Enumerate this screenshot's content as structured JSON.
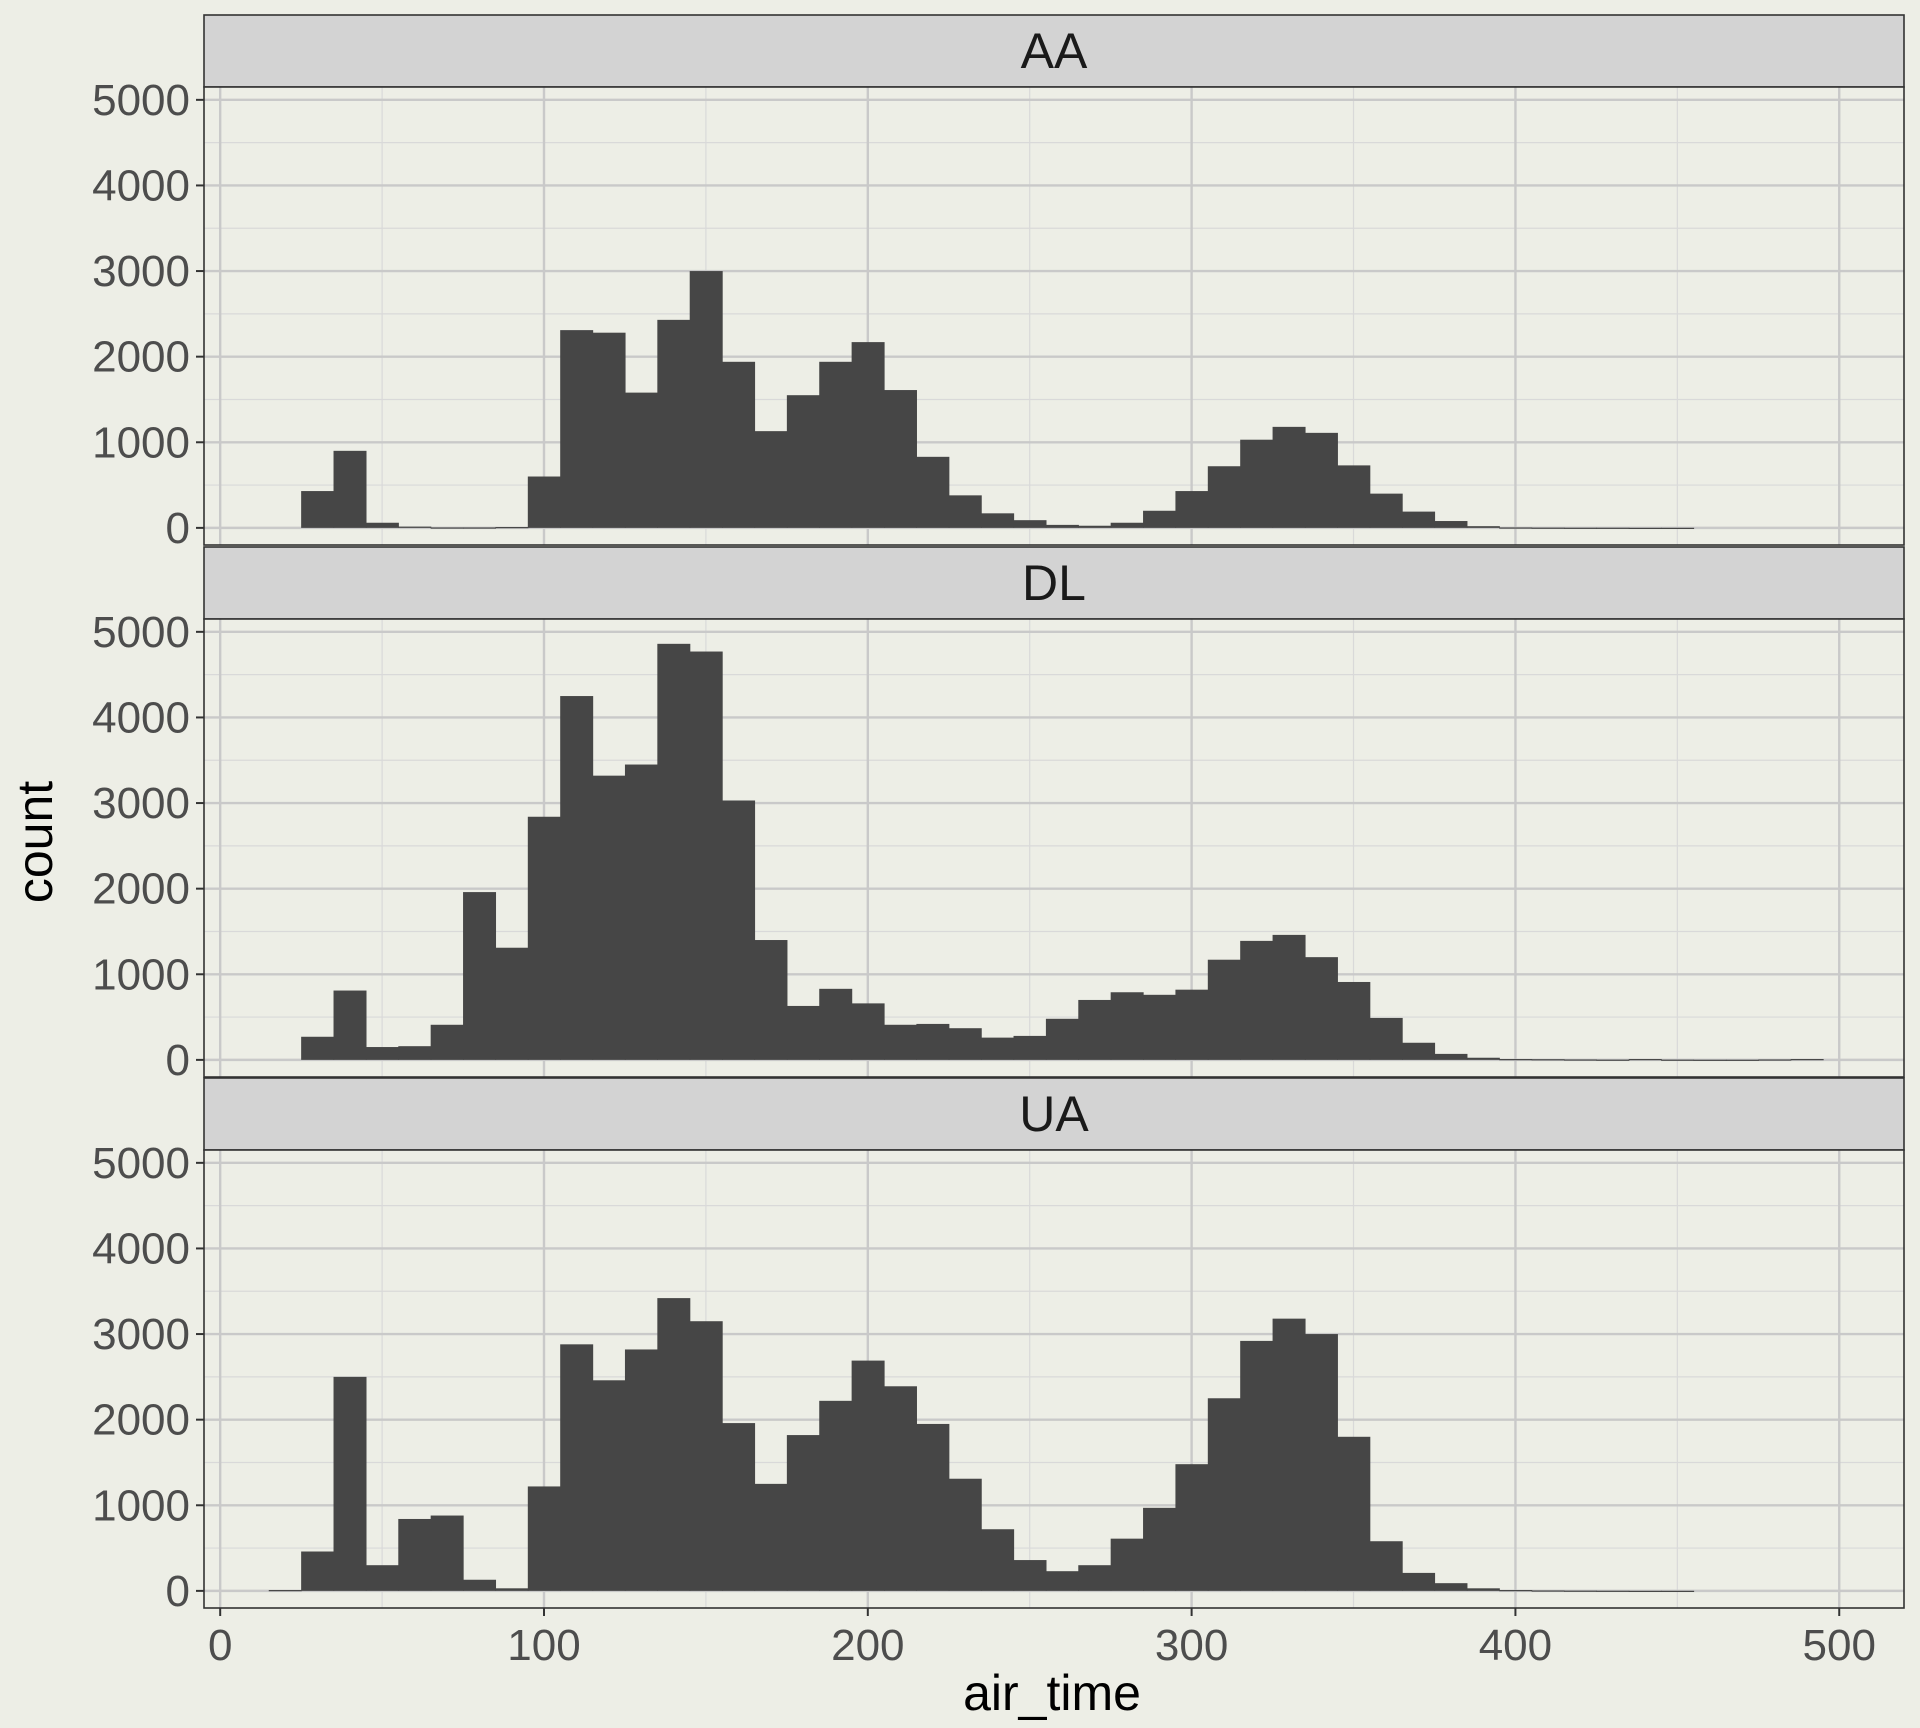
{
  "chart_data": {
    "type": "bar",
    "subtype": "faceted-histogram",
    "xlabel": "air_time",
    "ylabel": "count",
    "xlim": [
      -5,
      520
    ],
    "ylim": [
      -200,
      5150
    ],
    "x_ticks": [
      0,
      100,
      200,
      300,
      400,
      500
    ],
    "y_ticks": [
      0,
      1000,
      2000,
      3000,
      4000,
      5000
    ],
    "grid": true,
    "bin_width": 10,
    "bar_color": "#464646",
    "panel_background": "#edeee6",
    "strip_background": "#d3d3d3",
    "facets": [
      {
        "label": "AA",
        "bin_centers": [
          20,
          30,
          40,
          50,
          60,
          70,
          80,
          90,
          100,
          110,
          120,
          130,
          140,
          150,
          160,
          170,
          180,
          190,
          200,
          210,
          220,
          230,
          240,
          250,
          260,
          270,
          280,
          290,
          300,
          310,
          320,
          330,
          340,
          350,
          360,
          370,
          380,
          390,
          400,
          410,
          420,
          430,
          440,
          450,
          460,
          470,
          480,
          490
        ],
        "values": [
          0,
          430,
          900,
          60,
          15,
          5,
          5,
          10,
          600,
          2310,
          2280,
          1580,
          2430,
          3000,
          1940,
          1130,
          1550,
          1940,
          2170,
          1610,
          830,
          380,
          170,
          90,
          35,
          25,
          60,
          200,
          430,
          720,
          1030,
          1180,
          1110,
          730,
          400,
          190,
          80,
          20,
          5,
          3,
          2,
          2,
          1,
          1,
          0,
          0,
          0,
          0
        ]
      },
      {
        "label": "DL",
        "bin_centers": [
          20,
          30,
          40,
          50,
          60,
          70,
          80,
          90,
          100,
          110,
          120,
          130,
          140,
          150,
          160,
          170,
          180,
          190,
          200,
          210,
          220,
          230,
          240,
          250,
          260,
          270,
          280,
          290,
          300,
          310,
          320,
          330,
          340,
          350,
          360,
          370,
          380,
          390,
          400,
          410,
          420,
          430,
          440,
          450,
          460,
          470,
          480,
          490
        ],
        "values": [
          0,
          270,
          810,
          150,
          160,
          410,
          1960,
          1310,
          2840,
          4250,
          3320,
          3450,
          4860,
          4770,
          3030,
          1400,
          630,
          830,
          660,
          410,
          420,
          370,
          260,
          280,
          480,
          700,
          790,
          760,
          820,
          1170,
          1390,
          1460,
          1200,
          910,
          490,
          200,
          70,
          25,
          10,
          8,
          5,
          3,
          10,
          3,
          2,
          2,
          5,
          10
        ]
      },
      {
        "label": "UA",
        "bin_centers": [
          20,
          30,
          40,
          50,
          60,
          70,
          80,
          90,
          100,
          110,
          120,
          130,
          140,
          150,
          160,
          170,
          180,
          190,
          200,
          210,
          220,
          230,
          240,
          250,
          260,
          270,
          280,
          290,
          300,
          310,
          320,
          330,
          340,
          350,
          360,
          370,
          380,
          390,
          400,
          410,
          420,
          430,
          440,
          450,
          460,
          470,
          480,
          490
        ],
        "values": [
          10,
          460,
          2500,
          300,
          840,
          880,
          130,
          30,
          1220,
          2880,
          2460,
          2820,
          3420,
          3150,
          1960,
          1250,
          1820,
          2220,
          2690,
          2390,
          1950,
          1310,
          720,
          360,
          230,
          300,
          610,
          970,
          1480,
          2250,
          2920,
          3180,
          3000,
          1800,
          580,
          210,
          90,
          30,
          10,
          5,
          3,
          2,
          1,
          1,
          0,
          0,
          0,
          0
        ]
      }
    ]
  }
}
